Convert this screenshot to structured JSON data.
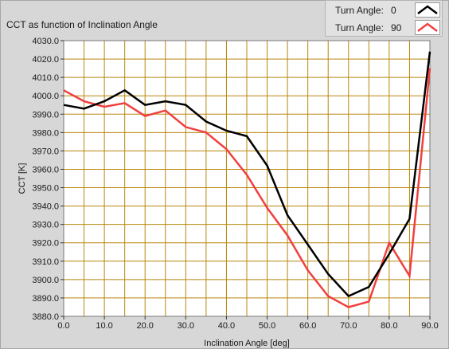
{
  "chart_title": "CCT as function of Inclination Angle",
  "legend": [
    {
      "label": "Turn Angle:",
      "value": "0",
      "color": "#000000"
    },
    {
      "label": "Turn Angle:",
      "value": "90",
      "color": "#f04040"
    }
  ],
  "chart_data": {
    "type": "line",
    "title": "CCT as function of Inclination Angle",
    "xlabel": "Inclination Angle [deg]",
    "ylabel": "CCT [K]",
    "xlim": [
      0,
      90
    ],
    "ylim": [
      3880,
      4030
    ],
    "x_ticks": [
      "0.0",
      "10.0",
      "20.0",
      "30.0",
      "40.0",
      "50.0",
      "60.0",
      "70.0",
      "80.0",
      "90.0"
    ],
    "y_ticks": [
      "3880.0",
      "3890.0",
      "3900.0",
      "3910.0",
      "3920.0",
      "3930.0",
      "3940.0",
      "3950.0",
      "3960.0",
      "3970.0",
      "3980.0",
      "3990.0",
      "4000.0",
      "4010.0",
      "4020.0",
      "4030.0"
    ],
    "x_grid_step": 5,
    "y_grid_step": 10,
    "grid": true,
    "grid_color": "#b8860b",
    "plot_bg": "#ffffff",
    "legend_position": "top-right",
    "series": [
      {
        "name": "Turn Angle: 0",
        "color": "#000000",
        "x": [
          0,
          5,
          10,
          15,
          20,
          25,
          30,
          35,
          40,
          45,
          50,
          55,
          60,
          65,
          70,
          75,
          80,
          85,
          90
        ],
        "values": [
          3995,
          3993,
          3997,
          4003,
          3995,
          3997,
          3995,
          3986,
          3981,
          3978,
          3962,
          3935,
          3919,
          3903,
          3891,
          3896,
          3914,
          3933,
          4024
        ]
      },
      {
        "name": "Turn Angle: 90",
        "color": "#f04040",
        "x": [
          0,
          5,
          10,
          15,
          20,
          25,
          30,
          35,
          40,
          45,
          50,
          55,
          60,
          65,
          70,
          75,
          80,
          85,
          90
        ],
        "values": [
          4003,
          3997,
          3994,
          3996,
          3989,
          3992,
          3983,
          3980,
          3971,
          3957,
          3939,
          3924,
          3905,
          3891,
          3885,
          3888,
          3920,
          3902,
          4015
        ]
      }
    ]
  }
}
